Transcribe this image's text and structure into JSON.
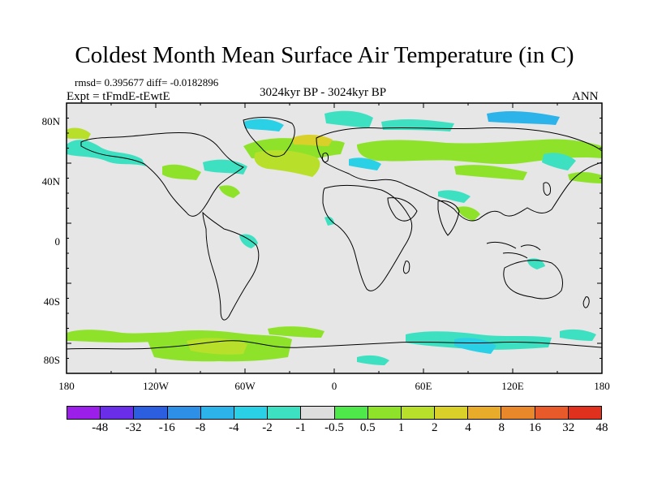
{
  "title": "Coldest Month Mean Surface Air Temperature (in C)",
  "stats": "rmsd= 0.395677 diff= -0.0182896",
  "experiment": "Expt = tFmdE-tEwtE",
  "period": "3024kyr BP - 3024kyr BP",
  "season": "ANN",
  "map": {
    "lat_labels": [
      "80N",
      "40N",
      "0",
      "40S",
      "80S"
    ],
    "lon_labels": [
      "180",
      "120W",
      "60W",
      "0",
      "60E",
      "120E",
      "180"
    ],
    "background_color": "#e6e6e6"
  },
  "colorbar": {
    "colors": [
      "#9b1fe8",
      "#6a2ee8",
      "#2c5fe0",
      "#2e8fe6",
      "#2bb3ea",
      "#2ad0e6",
      "#3ee0c2",
      "#dddddd",
      "#4ee84a",
      "#8ee32a",
      "#b8e02a",
      "#d9d02a",
      "#e8ac2a",
      "#e8882a",
      "#e85a2a",
      "#e0301e"
    ],
    "labels": [
      "-48",
      "-32",
      "-16",
      "-8",
      "-4",
      "-2",
      "-1",
      "-0.5",
      "0.5",
      "1",
      "2",
      "4",
      "8",
      "16",
      "32",
      "48"
    ]
  }
}
